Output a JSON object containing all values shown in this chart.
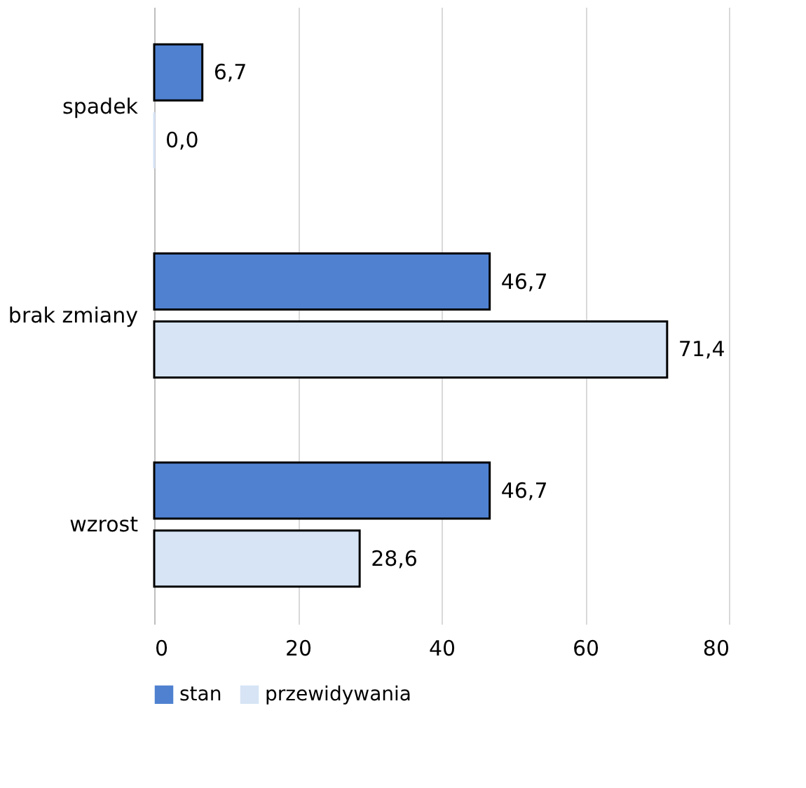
{
  "chart_data": {
    "type": "bar",
    "orientation": "horizontal",
    "categories": [
      "spadek",
      "brak zmiany",
      "wzrost"
    ],
    "series": [
      {
        "name": "stan",
        "color": "#4f81d0",
        "values": [
          6.7,
          46.7,
          46.7
        ],
        "value_labels": [
          "6,7",
          "46,7",
          "46,7"
        ]
      },
      {
        "name": "przewidywania",
        "color": "#d6e4f5",
        "values": [
          0.0,
          71.4,
          28.6
        ],
        "value_labels": [
          "0,0",
          "71,4",
          "28,6"
        ]
      }
    ],
    "xlim": [
      0,
      80
    ],
    "xticks": [
      0,
      20,
      40,
      60,
      80
    ],
    "grid": "x",
    "legend": "bottom"
  }
}
